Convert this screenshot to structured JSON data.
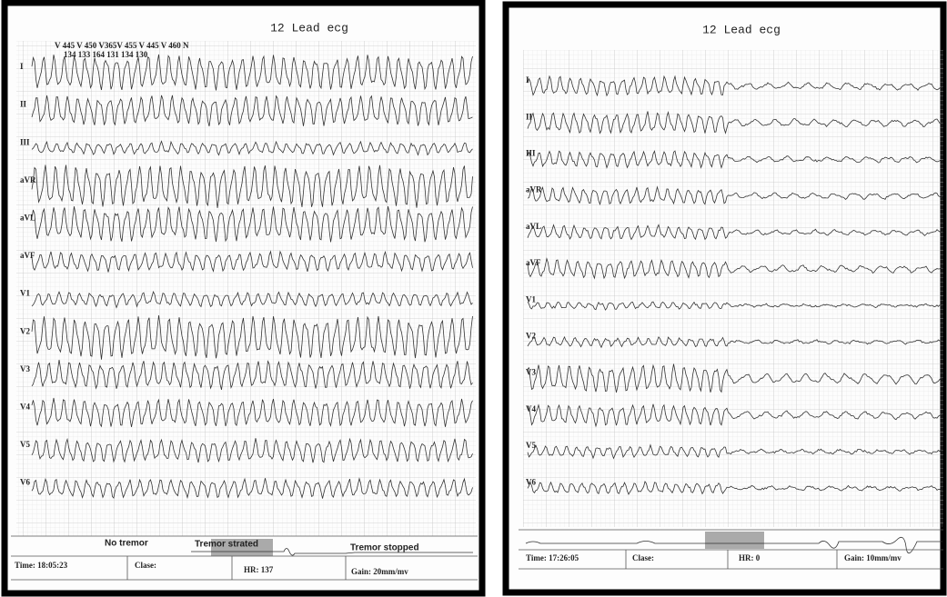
{
  "panels": [
    {
      "title": "12 Lead ecg",
      "annotations": {
        "top": "V 445 V 450 V365V 455 V 445 V 460 N",
        "bottom": "134 133 164 131 134 130"
      },
      "leads": [
        "I",
        "II",
        "III",
        "aVR",
        "aVL",
        "aVF",
        "V1",
        "V2",
        "V3",
        "V4",
        "V5",
        "V6"
      ],
      "events": [
        "No tremor",
        "Tremor strated",
        "Tremor stopped"
      ],
      "footer": {
        "time": "Time: 18:05:23",
        "clase": "Clase:",
        "hr": "HR: 137",
        "gain": "Gain: 20mm/mv"
      }
    },
    {
      "title": "12 Lead ecg",
      "leads": [
        "I",
        "II",
        "III",
        "aVR",
        "aVL",
        "aVF",
        "V1",
        "V2",
        "V3",
        "V4",
        "V5",
        "V6"
      ],
      "footer": {
        "time": "Time: 17:26:05",
        "clase": "Clase:",
        "hr": "HR: 0",
        "gain": "Gain: 10mm/mv"
      }
    }
  ]
}
